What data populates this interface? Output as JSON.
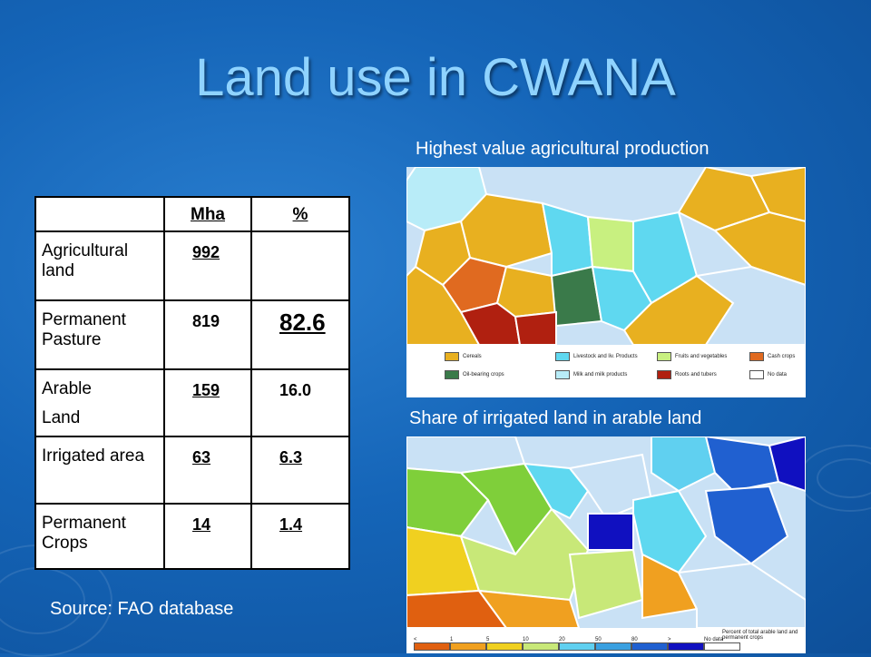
{
  "title": "Land use in CWANA",
  "table": {
    "headers": [
      "",
      "Mha",
      "%"
    ],
    "rows": [
      {
        "label": "Agricultural land",
        "mha": "992",
        "pct": ""
      },
      {
        "label": "Permanent Pasture",
        "mha": "819",
        "pct": "82.6"
      },
      {
        "label_line1": "Arable",
        "label_line2": "Land",
        "mha": "159",
        "pct": "16.0"
      },
      {
        "label": "Irrigated area",
        "mha": "63",
        "pct": "6.3"
      },
      {
        "label": "Permanent Crops",
        "mha": "14",
        "pct": "1.4"
      }
    ]
  },
  "map1": {
    "caption": "Highest value agricultural production",
    "legend": [
      {
        "label": "Cereals",
        "color": "#e8b020"
      },
      {
        "label": "Livestock and liv. Products",
        "color": "#5fd8f0"
      },
      {
        "label": "Fruits and vegetables",
        "color": "#c8f080"
      },
      {
        "label": "Cash crops",
        "color": "#e06a20"
      },
      {
        "label": "Oil-bearing crops",
        "color": "#3a7a4a"
      },
      {
        "label": "Milk and milk products",
        "color": "#b8ecf8"
      },
      {
        "label": "Roots and tubers",
        "color": "#b02010"
      },
      {
        "label": "No data",
        "color": "#ffffff"
      }
    ]
  },
  "map2": {
    "caption": "Share of irrigated land in arable land",
    "legend_title": "Percent of total arable land and permanent crops",
    "scale_labels": [
      "<",
      "1",
      "5",
      "10",
      "20",
      "50",
      "80",
      ">",
      "No data"
    ],
    "scale_colors": [
      "#e06010",
      "#f0a020",
      "#f0d020",
      "#c8e878",
      "#60d0f0",
      "#3aa0e0",
      "#2060d0",
      "#1010c0",
      "#ffffff"
    ]
  },
  "source": "Source: FAO database"
}
